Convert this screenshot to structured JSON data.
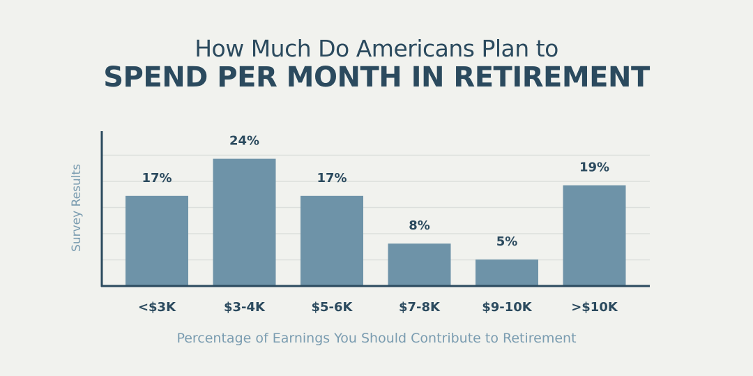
{
  "title_line1": "How Much Do Americans Plan to",
  "title_line2": "SPEND PER MONTH IN RETIREMENT",
  "chart_data": {
    "type": "bar",
    "title": "How Much Do Americans Plan to SPEND PER MONTH IN RETIREMENT",
    "categories": [
      "<$3K",
      "$3-4K",
      "$5-6K",
      "$7-8K",
      "$9-10K",
      ">$10K"
    ],
    "values": [
      17,
      24,
      17,
      8,
      5,
      19
    ],
    "data_labels": [
      "17%",
      "24%",
      "17%",
      "8%",
      "5%",
      "19%"
    ],
    "ylabel": "Survey Results",
    "xlabel": "Percentage of Earnings You Should Contribute to Retirement",
    "ylim": [
      0,
      25
    ],
    "grid": true,
    "colors": {
      "bar": "#6e93a8",
      "axis": "#2b4a5e",
      "grid": "#dcdfdc",
      "text": "#2b4a5e",
      "label": "#7a9cb0"
    }
  }
}
